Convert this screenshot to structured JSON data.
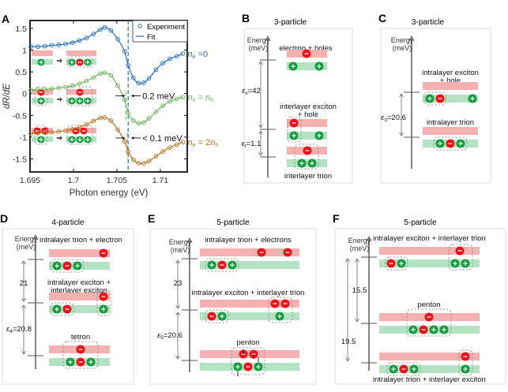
{
  "colors": {
    "blue": "#1f6fc4",
    "green": "#6db858",
    "orange": "#c0711e",
    "dash_blue": "#2f7fd6",
    "electron": "#e8141c",
    "hole": "#159a3e",
    "cb_band": "#f5b0b0",
    "vb_band": "#b3e3c3",
    "axis_gray": "#777777",
    "box_border": "#dddddd"
  },
  "panelA": {
    "label": "A",
    "chart_data": {
      "type": "line",
      "title": "",
      "xlabel": "Photon energy (eV)",
      "ylabel": "dR/dE",
      "xlim": [
        1.695,
        1.7131
      ],
      "ylim": [
        -1.8,
        1.68
      ],
      "xticks": [
        1.695,
        1.7,
        1.705,
        1.71
      ],
      "xtick_labels": [
        "1.695",
        "1.7",
        "1.705",
        "1.71"
      ],
      "yticks": [
        1.5,
        1,
        0.5,
        0,
        -0.5,
        -1,
        -1.5
      ],
      "ytick_labels": [
        "1.5",
        "1",
        "0.5",
        "0",
        "-0.5",
        "-1",
        "-1.5"
      ],
      "grid": false,
      "legend": {
        "position": "top-right",
        "entries": [
          "Experiment",
          "Fit"
        ]
      },
      "vline": {
        "x": 1.7063,
        "style": "dashed"
      },
      "series": [
        {
          "name": "n_e = 0",
          "label_prefix": "n",
          "label_sub": "e",
          "label_rest": " =0",
          "label_rest_sub": "",
          "color_key": "blue",
          "x": [
            1.6951,
            1.6959,
            1.6967,
            1.6975,
            1.6983,
            1.6991,
            1.6999,
            1.7007,
            1.7015,
            1.7023,
            1.7031,
            1.7036,
            1.7043,
            1.7051,
            1.7059,
            1.7063,
            1.7069,
            1.7075,
            1.7081,
            1.7087,
            1.7095,
            1.7103,
            1.7111,
            1.7119,
            1.7126
          ],
          "y": [
            1.08,
            1.08,
            1.09,
            1.11,
            1.12,
            1.14,
            1.17,
            1.22,
            1.28,
            1.37,
            1.47,
            1.52,
            1.45,
            1.25,
            0.97,
            0.65,
            0.36,
            0.24,
            0.25,
            0.35,
            0.55,
            0.7,
            0.8,
            0.86,
            0.92
          ]
        },
        {
          "name": "n_e = n_h",
          "label_prefix": "n",
          "label_sub": "e",
          "label_rest": " = n",
          "label_rest_sub": "h",
          "color_key": "green",
          "x": [
            1.6951,
            1.6959,
            1.6967,
            1.6975,
            1.6983,
            1.6991,
            1.6999,
            1.7007,
            1.7015,
            1.7023,
            1.7031,
            1.7036,
            1.7043,
            1.7051,
            1.7059,
            1.7063,
            1.7069,
            1.7075,
            1.7081,
            1.7087,
            1.7095,
            1.7103,
            1.7111,
            1.7119,
            1.7126
          ],
          "y": [
            0.08,
            0.09,
            0.1,
            0.11,
            0.13,
            0.15,
            0.18,
            0.23,
            0.29,
            0.37,
            0.46,
            0.48,
            0.42,
            0.18,
            -0.15,
            -0.45,
            -0.62,
            -0.68,
            -0.66,
            -0.57,
            -0.42,
            -0.28,
            -0.18,
            -0.12,
            -0.08
          ]
        },
        {
          "name": "n_e = 2n_h",
          "label_prefix": "n",
          "label_sub": "e",
          "label_rest": " = 2n",
          "label_rest_sub": "h",
          "color_key": "orange",
          "x": [
            1.6951,
            1.6959,
            1.6967,
            1.6975,
            1.6983,
            1.6991,
            1.6999,
            1.7007,
            1.7015,
            1.7023,
            1.7031,
            1.7036,
            1.7043,
            1.7051,
            1.7059,
            1.7063,
            1.7069,
            1.7075,
            1.7081,
            1.7087,
            1.7095,
            1.7103,
            1.7111,
            1.7119,
            1.7126
          ],
          "y": [
            -0.92,
            -0.91,
            -0.9,
            -0.89,
            -0.87,
            -0.85,
            -0.82,
            -0.77,
            -0.71,
            -0.63,
            -0.56,
            -0.55,
            -0.62,
            -0.83,
            -1.1,
            -1.33,
            -1.52,
            -1.6,
            -1.6,
            -1.55,
            -1.44,
            -1.33,
            -1.24,
            -1.17,
            -1.11
          ]
        }
      ],
      "annotations": [
        {
          "text": "0.2 meV",
          "x": 1.7063,
          "y": -0.05
        },
        {
          "text": "< 0.1 meV",
          "x": 1.7063,
          "y": -1.02
        }
      ]
    }
  },
  "panelB": {
    "label": "B",
    "title": "3-particle",
    "axis_label": [
      "Energy",
      "(meV)"
    ],
    "levels": [
      {
        "label": [
          "electron + holes"
        ]
      },
      {
        "label": [
          "interlayer exciton",
          "+ hole"
        ]
      },
      {
        "label": [
          "interlayer trion"
        ]
      }
    ],
    "gaps": [
      {
        "symbol": "ε",
        "sub": "x",
        "value": "=42"
      },
      {
        "symbol": "ε",
        "sub": "t",
        "value": "=1.1"
      }
    ]
  },
  "panelC": {
    "label": "C",
    "title": "3-particle",
    "axis_label": [
      "Energy",
      "(meV)"
    ],
    "levels": [
      {
        "label": [
          "intralayer exciton",
          "+ hole"
        ]
      },
      {
        "label": [
          "intralayer trion"
        ]
      }
    ],
    "gaps": [
      {
        "symbol": "ε",
        "sub": "3",
        "value": "=20.6"
      }
    ]
  },
  "panelD": {
    "label": "D",
    "title": "4-particle",
    "axis_label": [
      "Energy",
      "(meV)"
    ],
    "levels": [
      {
        "label": [
          "intralayer trion + electron"
        ]
      },
      {
        "label": [
          "intralayer exciton +",
          "interlayer exciton"
        ]
      },
      {
        "label": [
          "tetron"
        ]
      }
    ],
    "gaps": [
      {
        "symbol": "",
        "sub": "",
        "value": "21"
      },
      {
        "symbol": "ε",
        "sub": "4",
        "value": "=20.8"
      }
    ]
  },
  "panelE": {
    "label": "E",
    "title": "5-particle",
    "axis_label": [
      "Energy",
      "(meV)"
    ],
    "levels": [
      {
        "label": [
          "intralayer trion + electrons"
        ]
      },
      {
        "label": [
          "intralayer exciton + interlayer trion"
        ]
      },
      {
        "label": [
          "penton"
        ]
      }
    ],
    "gaps": [
      {
        "symbol": "",
        "sub": "",
        "value": "23"
      },
      {
        "symbol": "ε",
        "sub": "5",
        "value": "=20.6"
      }
    ]
  },
  "panelF": {
    "label": "F",
    "title": "5-particle",
    "axis_label": [
      "Energy",
      "(meV)"
    ],
    "levels": [
      {
        "label": [
          "intralayer exciton + interlayer trion"
        ]
      },
      {
        "label": [
          "penton"
        ]
      },
      {
        "label": [
          "intralayer trion + interlayer exciton"
        ]
      }
    ],
    "gaps": [
      {
        "symbol": "",
        "sub": "",
        "value": "15.5"
      },
      {
        "symbol": "",
        "sub": "",
        "value": "19.5"
      }
    ]
  },
  "glyphs": {
    "minus": "−",
    "plus": "+"
  }
}
